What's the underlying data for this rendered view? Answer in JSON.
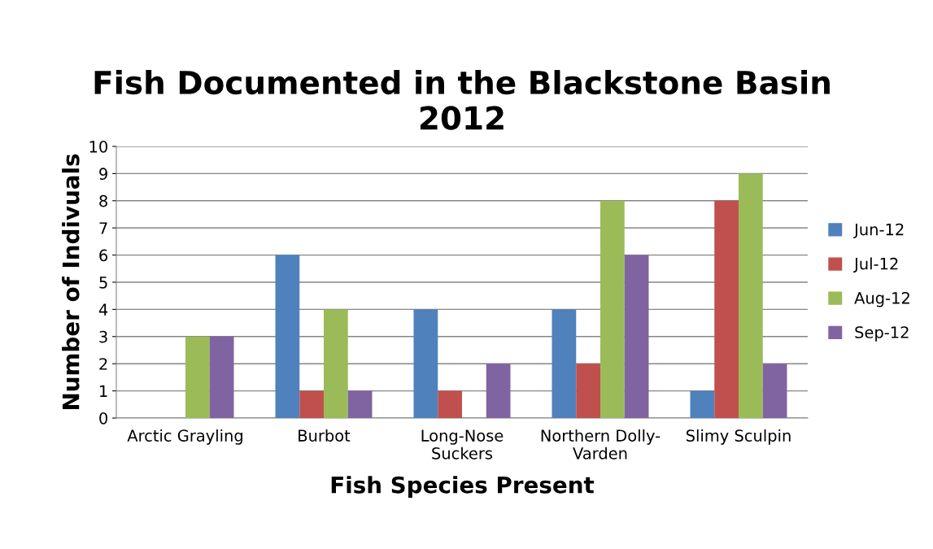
{
  "chart_data": {
    "type": "bar",
    "title": "Fish Documented in the Blackstone Basin\n2012",
    "xlabel": "Fish Species Present",
    "ylabel": "Number of Indivuals",
    "categories": [
      "Arctic Grayling",
      "Burbot",
      "Long-Nose\nSuckers",
      "Northern Dolly-\nVarden",
      "Slimy Sculpin"
    ],
    "series": [
      {
        "name": "Jun-12",
        "color": "#4f81bd",
        "values": [
          0,
          6,
          4,
          4,
          1
        ]
      },
      {
        "name": "Jul-12",
        "color": "#c0504d",
        "values": [
          0,
          1,
          1,
          2,
          8
        ]
      },
      {
        "name": "Aug-12",
        "color": "#9bbb59",
        "values": [
          3,
          4,
          0,
          8,
          9
        ]
      },
      {
        "name": "Sep-12",
        "color": "#8064a2",
        "values": [
          3,
          1,
          2,
          6,
          2
        ]
      }
    ],
    "ylim": [
      0,
      10
    ],
    "yticks": [
      0,
      1,
      2,
      3,
      4,
      5,
      6,
      7,
      8,
      9,
      10
    ],
    "grid": "y",
    "legend": "right"
  }
}
